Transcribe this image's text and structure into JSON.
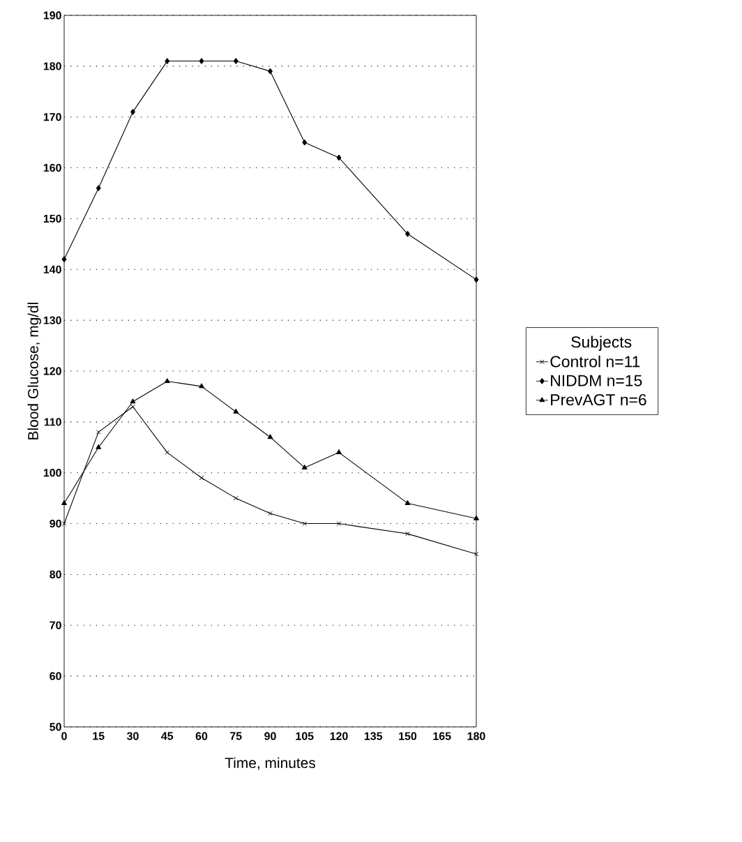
{
  "chart_data": {
    "type": "line",
    "xlabel": "Time, minutes",
    "ylabel": "Blood Glucose, mg/dl",
    "legend_title": "Subjects",
    "xlim": [
      0,
      180
    ],
    "xticks": [
      0,
      15,
      30,
      45,
      60,
      75,
      90,
      105,
      120,
      135,
      150,
      165,
      180
    ],
    "ylim": [
      50,
      190
    ],
    "yticks": [
      50,
      60,
      70,
      80,
      90,
      100,
      110,
      120,
      130,
      140,
      150,
      160,
      170,
      180,
      190
    ],
    "grid": "y",
    "legend": "right",
    "line_style": "solid",
    "series": [
      {
        "name": "Control n=11",
        "color": "#000000",
        "marker": "cross",
        "x": [
          0,
          15,
          30,
          45,
          60,
          75,
          90,
          105,
          120,
          150,
          180
        ],
        "values": [
          90,
          108,
          113,
          104,
          99,
          95,
          92,
          90,
          90,
          88,
          84
        ]
      },
      {
        "name": "NIDDM n=15",
        "color": "#000000",
        "marker": "diamond",
        "x": [
          0,
          15,
          30,
          45,
          60,
          75,
          90,
          105,
          120,
          150,
          180
        ],
        "values": [
          142,
          156,
          171,
          181,
          181,
          181,
          179,
          165,
          162,
          147,
          138
        ]
      },
      {
        "name": "PrevAGT n=6",
        "color": "#000000",
        "marker": "triangle",
        "x": [
          0,
          15,
          30,
          45,
          60,
          75,
          90,
          105,
          120,
          150,
          180
        ],
        "values": [
          94,
          105,
          114,
          118,
          117,
          112,
          107,
          101,
          104,
          94,
          91
        ]
      }
    ]
  }
}
